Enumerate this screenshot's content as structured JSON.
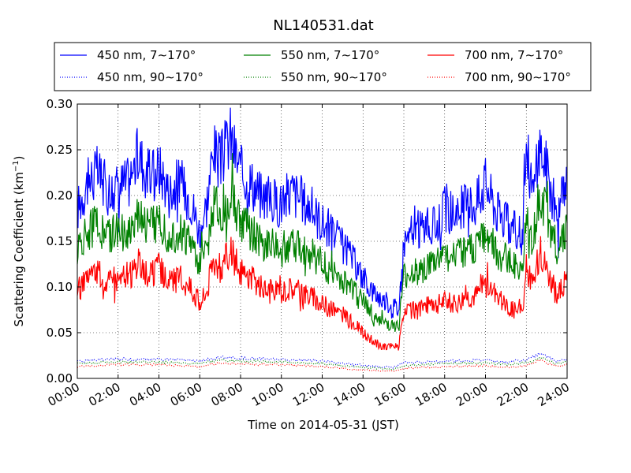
{
  "chart_data": {
    "type": "line",
    "title": "NL140531.dat",
    "xlabel": "Time on 2014-05-31 (JST)",
    "ylabel": "Scattering Coefficient (km",
    "ylabel_sup": "−1",
    "ylabel_end": ")",
    "xlim": [
      "00:00",
      "24:00"
    ],
    "ylim": [
      0.0,
      0.3
    ],
    "x_ticks": [
      "00:00",
      "02:00",
      "04:00",
      "06:00",
      "08:00",
      "10:00",
      "12:00",
      "14:00",
      "16:00",
      "18:00",
      "20:00",
      "22:00",
      "24:00"
    ],
    "y_ticks": [
      "0.00",
      "0.05",
      "0.10",
      "0.15",
      "0.20",
      "0.25",
      "0.30"
    ],
    "grid": true,
    "legend_position": "top",
    "series": [
      {
        "name": "450 nm, 7∼170°",
        "color": "#0000ff",
        "style": "solid",
        "x": [
          "00:00",
          "00:30",
          "01:00",
          "01:30",
          "02:00",
          "02:30",
          "03:00",
          "03:30",
          "04:00",
          "04:30",
          "05:00",
          "05:30",
          "06:00",
          "06:20",
          "06:40",
          "07:00",
          "07:30",
          "08:00",
          "08:30",
          "09:00",
          "09:30",
          "10:00",
          "10:30",
          "11:00",
          "11:30",
          "12:00",
          "12:30",
          "13:00",
          "13:30",
          "14:00",
          "14:30",
          "15:00",
          "15:30",
          "15:45",
          "16:00",
          "16:30",
          "17:00",
          "17:30",
          "18:00",
          "18:30",
          "19:00",
          "19:30",
          "20:00",
          "20:30",
          "21:00",
          "21:30",
          "21:50",
          "22:00",
          "22:20",
          "22:40",
          "23:00",
          "23:30",
          "24:00"
        ],
        "y": [
          0.185,
          0.215,
          0.225,
          0.205,
          0.21,
          0.215,
          0.245,
          0.22,
          0.23,
          0.205,
          0.215,
          0.2,
          0.16,
          0.19,
          0.25,
          0.235,
          0.265,
          0.225,
          0.215,
          0.2,
          0.195,
          0.19,
          0.205,
          0.195,
          0.185,
          0.17,
          0.16,
          0.145,
          0.13,
          0.11,
          0.095,
          0.085,
          0.08,
          0.075,
          0.15,
          0.16,
          0.165,
          0.165,
          0.185,
          0.18,
          0.19,
          0.19,
          0.215,
          0.185,
          0.17,
          0.16,
          0.155,
          0.255,
          0.2,
          0.255,
          0.23,
          0.175,
          0.215
        ]
      },
      {
        "name": "550 nm, 7∼170°",
        "color": "#008000",
        "style": "solid",
        "x": [
          "00:00",
          "00:30",
          "01:00",
          "01:30",
          "02:00",
          "02:30",
          "03:00",
          "03:30",
          "04:00",
          "04:30",
          "05:00",
          "05:30",
          "06:00",
          "06:20",
          "06:40",
          "07:00",
          "07:30",
          "08:00",
          "08:30",
          "09:00",
          "09:30",
          "10:00",
          "10:30",
          "11:00",
          "11:30",
          "12:00",
          "12:30",
          "13:00",
          "13:30",
          "14:00",
          "14:30",
          "15:00",
          "15:30",
          "15:45",
          "16:00",
          "16:30",
          "17:00",
          "17:30",
          "18:00",
          "18:30",
          "19:00",
          "19:30",
          "20:00",
          "20:30",
          "21:00",
          "21:30",
          "21:50",
          "22:00",
          "22:20",
          "22:40",
          "23:00",
          "23:30",
          "24:00"
        ],
        "y": [
          0.14,
          0.16,
          0.17,
          0.155,
          0.16,
          0.16,
          0.185,
          0.165,
          0.175,
          0.155,
          0.16,
          0.15,
          0.125,
          0.14,
          0.19,
          0.18,
          0.205,
          0.17,
          0.16,
          0.15,
          0.145,
          0.14,
          0.155,
          0.145,
          0.135,
          0.125,
          0.115,
          0.105,
          0.095,
          0.085,
          0.07,
          0.06,
          0.058,
          0.055,
          0.11,
          0.115,
          0.12,
          0.125,
          0.135,
          0.13,
          0.14,
          0.14,
          0.16,
          0.14,
          0.13,
          0.125,
          0.12,
          0.175,
          0.15,
          0.205,
          0.18,
          0.14,
          0.165
        ]
      },
      {
        "name": "700 nm, 7∼170°",
        "color": "#ff0000",
        "style": "solid",
        "x": [
          "00:00",
          "00:30",
          "01:00",
          "01:30",
          "02:00",
          "02:30",
          "03:00",
          "03:30",
          "04:00",
          "04:30",
          "05:00",
          "05:30",
          "06:00",
          "06:20",
          "06:40",
          "07:00",
          "07:30",
          "08:00",
          "08:30",
          "09:00",
          "09:30",
          "10:00",
          "10:30",
          "11:00",
          "11:30",
          "12:00",
          "12:30",
          "13:00",
          "13:30",
          "14:00",
          "14:30",
          "15:00",
          "15:30",
          "15:45",
          "16:00",
          "16:30",
          "17:00",
          "17:30",
          "18:00",
          "18:30",
          "19:00",
          "19:30",
          "20:00",
          "20:30",
          "21:00",
          "21:30",
          "21:50",
          "22:00",
          "22:20",
          "22:40",
          "23:00",
          "23:30",
          "24:00"
        ],
        "y": [
          0.095,
          0.11,
          0.115,
          0.105,
          0.11,
          0.11,
          0.125,
          0.11,
          0.12,
          0.105,
          0.11,
          0.1,
          0.085,
          0.095,
          0.13,
          0.12,
          0.14,
          0.115,
          0.11,
          0.1,
          0.095,
          0.095,
          0.1,
          0.095,
          0.09,
          0.08,
          0.075,
          0.07,
          0.06,
          0.05,
          0.04,
          0.035,
          0.035,
          0.035,
          0.07,
          0.075,
          0.08,
          0.08,
          0.085,
          0.08,
          0.09,
          0.09,
          0.105,
          0.09,
          0.08,
          0.075,
          0.075,
          0.12,
          0.1,
          0.14,
          0.12,
          0.09,
          0.11
        ]
      },
      {
        "name": "450 nm, 90∼170°",
        "color": "#0000ff",
        "style": "dotted",
        "x": [
          "00:00",
          "02:00",
          "04:00",
          "06:00",
          "07:00",
          "08:00",
          "10:00",
          "12:00",
          "14:00",
          "15:30",
          "16:00",
          "18:00",
          "20:00",
          "21:00",
          "22:00",
          "22:40",
          "23:30",
          "24:00"
        ],
        "y": [
          0.019,
          0.021,
          0.021,
          0.019,
          0.023,
          0.022,
          0.021,
          0.019,
          0.014,
          0.012,
          0.017,
          0.019,
          0.02,
          0.018,
          0.02,
          0.027,
          0.019,
          0.021
        ]
      },
      {
        "name": "550 nm, 90∼170°",
        "color": "#008000",
        "style": "dotted",
        "x": [
          "00:00",
          "02:00",
          "04:00",
          "06:00",
          "07:00",
          "08:00",
          "10:00",
          "12:00",
          "14:00",
          "15:30",
          "16:00",
          "18:00",
          "20:00",
          "21:00",
          "22:00",
          "22:40",
          "23:30",
          "24:00"
        ],
        "y": [
          0.016,
          0.018,
          0.018,
          0.016,
          0.02,
          0.019,
          0.018,
          0.016,
          0.012,
          0.01,
          0.014,
          0.016,
          0.017,
          0.015,
          0.017,
          0.023,
          0.016,
          0.018
        ]
      },
      {
        "name": "700 nm, 90∼170°",
        "color": "#ff0000",
        "style": "dotted",
        "x": [
          "00:00",
          "02:00",
          "04:00",
          "06:00",
          "07:00",
          "08:00",
          "10:00",
          "12:00",
          "14:00",
          "15:30",
          "16:00",
          "18:00",
          "20:00",
          "21:00",
          "22:00",
          "22:40",
          "23:30",
          "24:00"
        ],
        "y": [
          0.013,
          0.015,
          0.015,
          0.013,
          0.017,
          0.016,
          0.015,
          0.013,
          0.009,
          0.008,
          0.011,
          0.013,
          0.014,
          0.012,
          0.014,
          0.02,
          0.013,
          0.015
        ]
      }
    ]
  }
}
